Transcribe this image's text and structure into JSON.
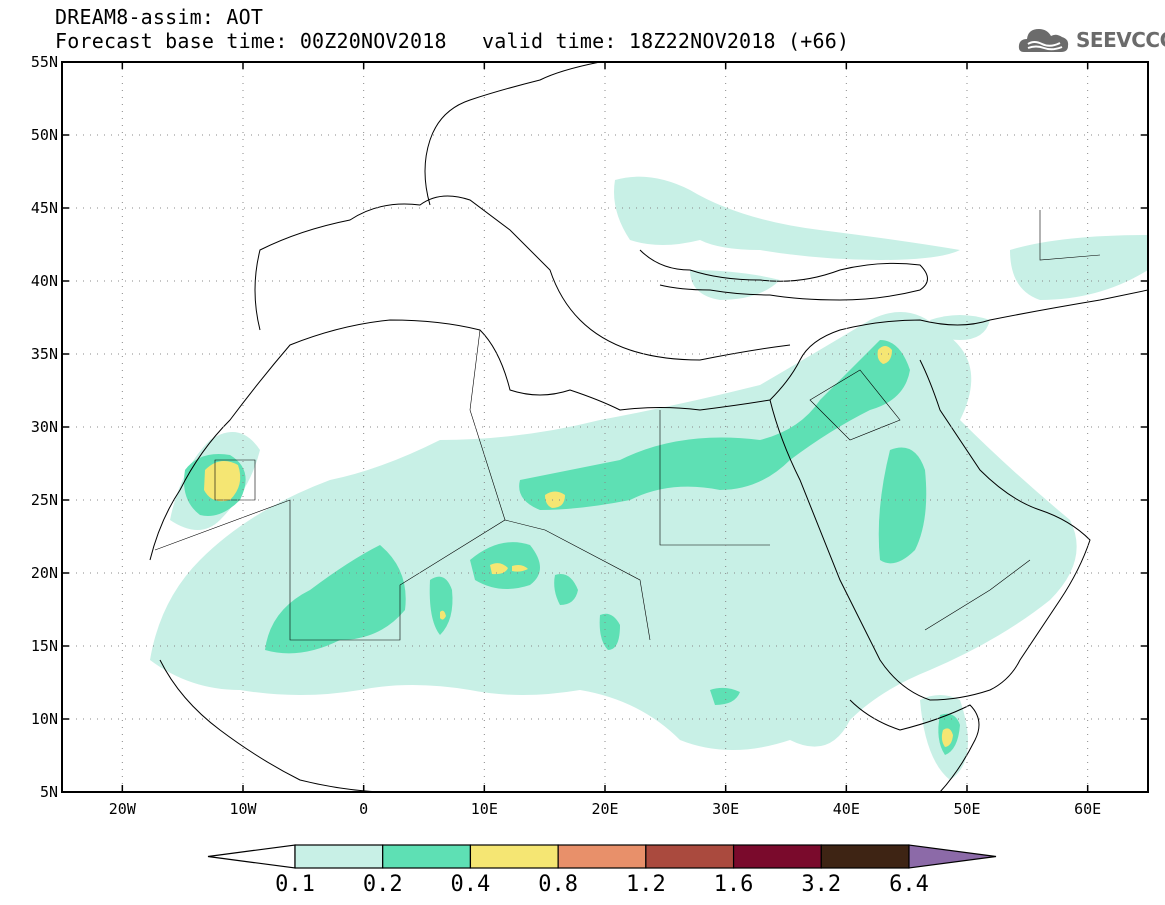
{
  "header": {
    "title": "DREAM8-assim: AOT",
    "forecast_base": "Forecast base time: 00Z20NOV2018",
    "valid_time": "valid time: 18Z22NOV2018 (+66)"
  },
  "logo": {
    "text": "SEEVCCC",
    "icon": "cloud-icon"
  },
  "map": {
    "lon_range": [
      -25,
      65
    ],
    "lat_range": [
      5,
      55
    ],
    "lat_labels": [
      "5N",
      "10N",
      "15N",
      "20N",
      "25N",
      "30N",
      "35N",
      "40N",
      "45N",
      "50N",
      "55N"
    ],
    "lon_labels": [
      "20W",
      "10W",
      "0",
      "10E",
      "20E",
      "30E",
      "40E",
      "50E",
      "60E"
    ]
  },
  "colorbar": {
    "levels": [
      "0.1",
      "0.2",
      "0.4",
      "0.8",
      "1.2",
      "1.6",
      "3.2",
      "6.4"
    ],
    "colors": [
      "#ffffff",
      "#c8f0e6",
      "#5ee0b4",
      "#f5e673",
      "#e8906a",
      "#aa4a3e",
      "#7a0a2c",
      "#3e2414",
      "#8c6aa8"
    ]
  }
}
